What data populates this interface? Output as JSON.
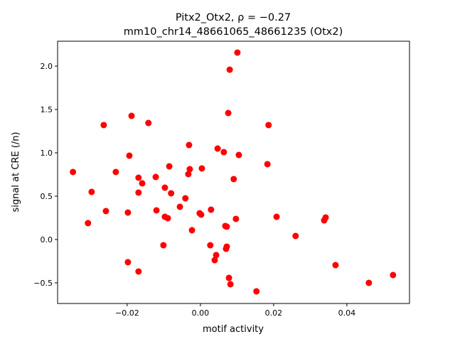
{
  "chart_data": {
    "type": "scatter",
    "title_line1": "Pitx2_Otx2, ρ = −0.27",
    "title_line2": "mm10_chr14_48661065_48661235 (Otx2)",
    "xlabel": "motif activity",
    "ylabel": "signal at CRE (/n)",
    "xlim": [
      -0.039,
      0.0571
    ],
    "ylim": [
      -0.738,
      2.287
    ],
    "xticks": [
      -0.02,
      0.0,
      0.02,
      0.04
    ],
    "xtick_labels": [
      "−0.02",
      "0.00",
      "0.02",
      "0.04"
    ],
    "yticks": [
      -0.5,
      0.0,
      0.5,
      1.0,
      1.5,
      2.0
    ],
    "ytick_labels": [
      "−0.5",
      "0.0",
      "0.5",
      "1.0",
      "1.5",
      "2.0"
    ],
    "grid": false,
    "marker_color": "#ff0000",
    "points": [
      [
        -0.0348,
        0.779
      ],
      [
        0.0101,
        2.156
      ],
      [
        0.008,
        1.959
      ],
      [
        -0.0188,
        1.426
      ],
      [
        -0.0264,
        1.32
      ],
      [
        -0.0142,
        1.344
      ],
      [
        0.0076,
        1.459
      ],
      [
        0.0186,
        1.32
      ],
      [
        -0.0031,
        1.09
      ],
      [
        0.0047,
        1.049
      ],
      [
        0.0064,
        1.008
      ],
      [
        0.0105,
        0.975
      ],
      [
        -0.0194,
        0.967
      ],
      [
        0.0183,
        0.869
      ],
      [
        -0.0085,
        0.844
      ],
      [
        -0.0029,
        0.811
      ],
      [
        0.0004,
        0.82
      ],
      [
        -0.0231,
        0.779
      ],
      [
        -0.0033,
        0.754
      ],
      [
        -0.0169,
        0.713
      ],
      [
        -0.0122,
        0.721
      ],
      [
        0.0091,
        0.697
      ],
      [
        -0.0159,
        0.648
      ],
      [
        -0.0097,
        0.598
      ],
      [
        -0.0297,
        0.549
      ],
      [
        -0.0169,
        0.541
      ],
      [
        -0.008,
        0.533
      ],
      [
        -0.0041,
        0.475
      ],
      [
        -0.0056,
        0.377
      ],
      [
        -0.0258,
        0.328
      ],
      [
        -0.012,
        0.336
      ],
      [
        0.0029,
        0.344
      ],
      [
        -0.0198,
        0.311
      ],
      [
        -0.0002,
        0.303
      ],
      [
        0.0002,
        0.287
      ],
      [
        -0.0097,
        0.262
      ],
      [
        -0.0089,
        0.246
      ],
      [
        0.0208,
        0.262
      ],
      [
        0.0342,
        0.254
      ],
      [
        0.0338,
        0.221
      ],
      [
        0.0097,
        0.238
      ],
      [
        -0.0307,
        0.189
      ],
      [
        0.0068,
        0.156
      ],
      [
        0.0072,
        0.148
      ],
      [
        -0.0023,
        0.107
      ],
      [
        0.026,
        0.041
      ],
      [
        -0.0101,
        -0.066
      ],
      [
        0.0027,
        -0.066
      ],
      [
        0.0072,
        -0.082
      ],
      [
        0.007,
        -0.107
      ],
      [
        0.0043,
        -0.18
      ],
      [
        0.0039,
        -0.238
      ],
      [
        -0.0198,
        -0.262
      ],
      [
        0.0369,
        -0.295
      ],
      [
        -0.0169,
        -0.369
      ],
      [
        0.0078,
        -0.443
      ],
      [
        0.0526,
        -0.41
      ],
      [
        0.046,
        -0.5
      ],
      [
        0.0082,
        -0.516
      ],
      [
        0.0153,
        -0.598
      ]
    ]
  }
}
